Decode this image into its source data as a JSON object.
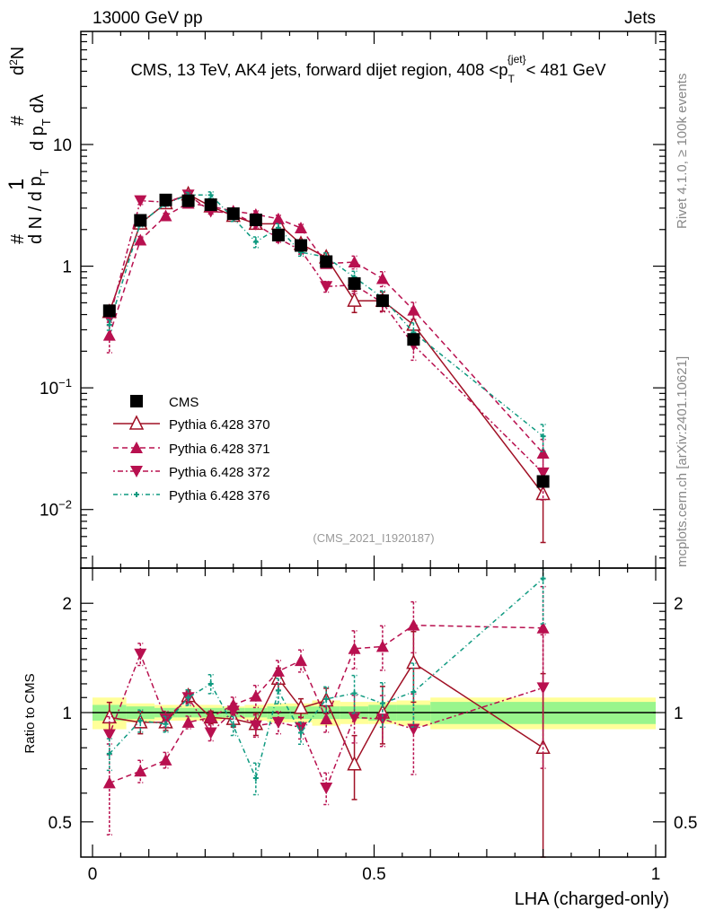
{
  "header": {
    "left": "13000 GeV pp",
    "right": "Jets"
  },
  "side": {
    "rivet": "Rivet 4.1.0, ≥ 100k events",
    "mcplots": "mcplots.cern.ch [arXiv:2401.10621]"
  },
  "chart_data": {
    "type": "line",
    "title": "CMS, 13 TeV, AK4 jets, forward dijet region, 408 <p_T^{jet}< 481 GeV",
    "title_parts": {
      "main": "CMS, 13 TeV, AK4 jets, forward dijet region, 408 <p",
      "sub": "T",
      "sup": "{jet}",
      "tail": "< 481 GeV"
    },
    "analysis_label": "(CMS_2021_I1920187)",
    "xlabel": "LHA (charged-only)",
    "ylabel": "1/N dN/dp_T d^2N/dp_T dλ",
    "ylabel_parts": {
      "a": "#",
      "b": "1",
      "c": "d N / d p",
      "d": "T",
      "e": "#",
      "f": "d",
      "g": "2",
      "h": "N",
      "i": "d p",
      "j": "T",
      "k": "dλ"
    },
    "ratio_ylabel": "Ratio to CMS",
    "xlim": [
      0,
      1
    ],
    "ylim": [
      0.0033,
      85
    ],
    "yscale": "log",
    "ratio_ylim": [
      0.4,
      2.5
    ],
    "x_ticklabels": [
      "0",
      "0.5",
      "1"
    ],
    "y_ticks": [
      {
        "base": "10",
        "exp": "−2",
        "v": 0.01
      },
      {
        "base": "10",
        "exp": "−1",
        "v": 0.1
      },
      {
        "base": "1",
        "exp": "",
        "v": 1
      },
      {
        "base": "10",
        "exp": "",
        "v": 10
      }
    ],
    "ratio_ticks": [
      {
        "label": "0.5",
        "v": 0.5
      },
      {
        "label": "1",
        "v": 1
      },
      {
        "label": "2",
        "v": 2
      }
    ],
    "x": [
      0.03,
      0.085,
      0.13,
      0.17,
      0.21,
      0.25,
      0.29,
      0.33,
      0.37,
      0.415,
      0.465,
      0.515,
      0.57,
      0.8
    ],
    "bin_edges": [
      0,
      0.06,
      0.11,
      0.15,
      0.19,
      0.23,
      0.27,
      0.31,
      0.35,
      0.39,
      0.44,
      0.49,
      0.54,
      0.6,
      1.0
    ],
    "data": {
      "name": "CMS",
      "values": [
        0.43,
        2.38,
        3.5,
        3.45,
        3.2,
        2.7,
        2.4,
        1.8,
        1.48,
        1.09,
        0.72,
        0.52,
        0.25,
        0.017
      ],
      "band_total": [
        0.1,
        0.06,
        0.05,
        0.05,
        0.05,
        0.04,
        0.05,
        0.06,
        0.06,
        0.08,
        0.07,
        0.07,
        0.08,
        0.1
      ],
      "band_stat": [
        0.05,
        0.04,
        0.03,
        0.03,
        0.03,
        0.03,
        0.03,
        0.04,
        0.04,
        0.04,
        0.04,
        0.05,
        0.05,
        0.07
      ]
    },
    "series": [
      {
        "name": "Pythia 6.428 370",
        "color": "#a01025",
        "marker": "open-triangle-up",
        "dash": "",
        "values": [
          0.42,
          2.24,
          3.29,
          3.89,
          3.1,
          2.59,
          2.23,
          2.23,
          1.52,
          1.18,
          0.52,
          0.52,
          0.33,
          0.0134
        ],
        "ratio": [
          0.97,
          0.94,
          0.94,
          1.11,
          0.97,
          0.96,
          0.93,
          1.24,
          1.03,
          1.08,
          0.72,
          1.0,
          1.37,
          0.8
        ],
        "rel_err": [
          0.1,
          0.07,
          0.05,
          0.04,
          0.04,
          0.05,
          0.07,
          0.07,
          0.06,
          0.08,
          0.2,
          0.18,
          0.22,
          0.6
        ]
      },
      {
        "name": "Pythia 6.428 371",
        "color": "#b8104f",
        "marker": "triangle-up",
        "dash": "6,4",
        "values": [
          0.27,
          1.64,
          2.59,
          3.29,
          3.1,
          2.84,
          2.66,
          2.45,
          2.06,
          1.05,
          1.08,
          0.79,
          0.435,
          0.029
        ],
        "ratio": [
          0.64,
          0.69,
          0.74,
          0.94,
          0.97,
          1.05,
          1.11,
          1.3,
          1.39,
          0.96,
          1.5,
          1.52,
          1.74,
          1.71
        ],
        "rel_err": [
          0.28,
          0.07,
          0.05,
          0.04,
          0.04,
          0.05,
          0.07,
          0.07,
          0.07,
          0.08,
          0.12,
          0.14,
          0.16,
          0.3
        ]
      },
      {
        "name": "Pythia 6.428 372",
        "color": "#b8104f",
        "marker": "triangle-down",
        "dash": "2,3,6,3",
        "values": [
          0.37,
          3.45,
          3.36,
          3.85,
          2.82,
          2.73,
          2.21,
          1.69,
          1.35,
          0.68,
          0.7,
          0.5,
          0.225,
          0.02
        ],
        "ratio": [
          0.87,
          1.45,
          0.96,
          1.1,
          0.88,
          1.01,
          0.92,
          0.94,
          0.91,
          0.62,
          0.97,
          0.96,
          0.9,
          1.17
        ],
        "rel_err": [
          0.12,
          0.07,
          0.05,
          0.04,
          0.05,
          0.05,
          0.07,
          0.07,
          0.07,
          0.1,
          0.15,
          0.16,
          0.25,
          0.4
        ]
      },
      {
        "name": "Pythia 6.428 376",
        "color": "#0f9a80",
        "marker": "star",
        "dash": "5,3,1,3",
        "values": [
          0.33,
          2.26,
          3.26,
          3.85,
          3.84,
          2.48,
          1.58,
          2.07,
          1.3,
          1.19,
          0.81,
          0.55,
          0.285,
          0.04
        ],
        "ratio": [
          0.77,
          0.95,
          0.93,
          1.1,
          1.2,
          0.92,
          0.66,
          1.15,
          0.88,
          1.09,
          1.13,
          1.06,
          1.14,
          2.34
        ],
        "rel_err": [
          0.1,
          0.07,
          0.05,
          0.05,
          0.06,
          0.06,
          0.1,
          0.08,
          0.07,
          0.08,
          0.12,
          0.14,
          0.2,
          0.25
        ]
      }
    ],
    "legend_position": "lower-left"
  }
}
